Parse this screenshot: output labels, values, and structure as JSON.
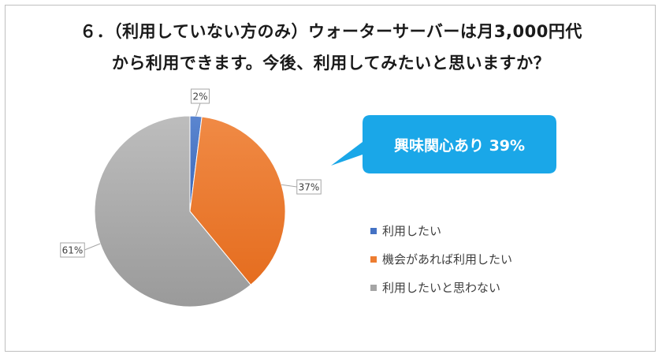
{
  "title_line1": "６．（利用していない方のみ）ウォーターサーバーは月3,000円代",
  "title_line2": "から利用できます。今後、利用してみたいと思いますか？",
  "callout": {
    "text": "興味関心あり 39%",
    "color": "#1aa7e8"
  },
  "chart_data": {
    "type": "pie",
    "categories": [
      "利用したい",
      "機会があれば利用したい",
      "利用したいと思わない"
    ],
    "values": [
      2,
      37,
      61
    ],
    "labels": [
      "2%",
      "37%",
      "61%"
    ],
    "colors": [
      "#4472c4",
      "#ed7d31",
      "#a5a5a5"
    ],
    "legend_position": "right"
  }
}
